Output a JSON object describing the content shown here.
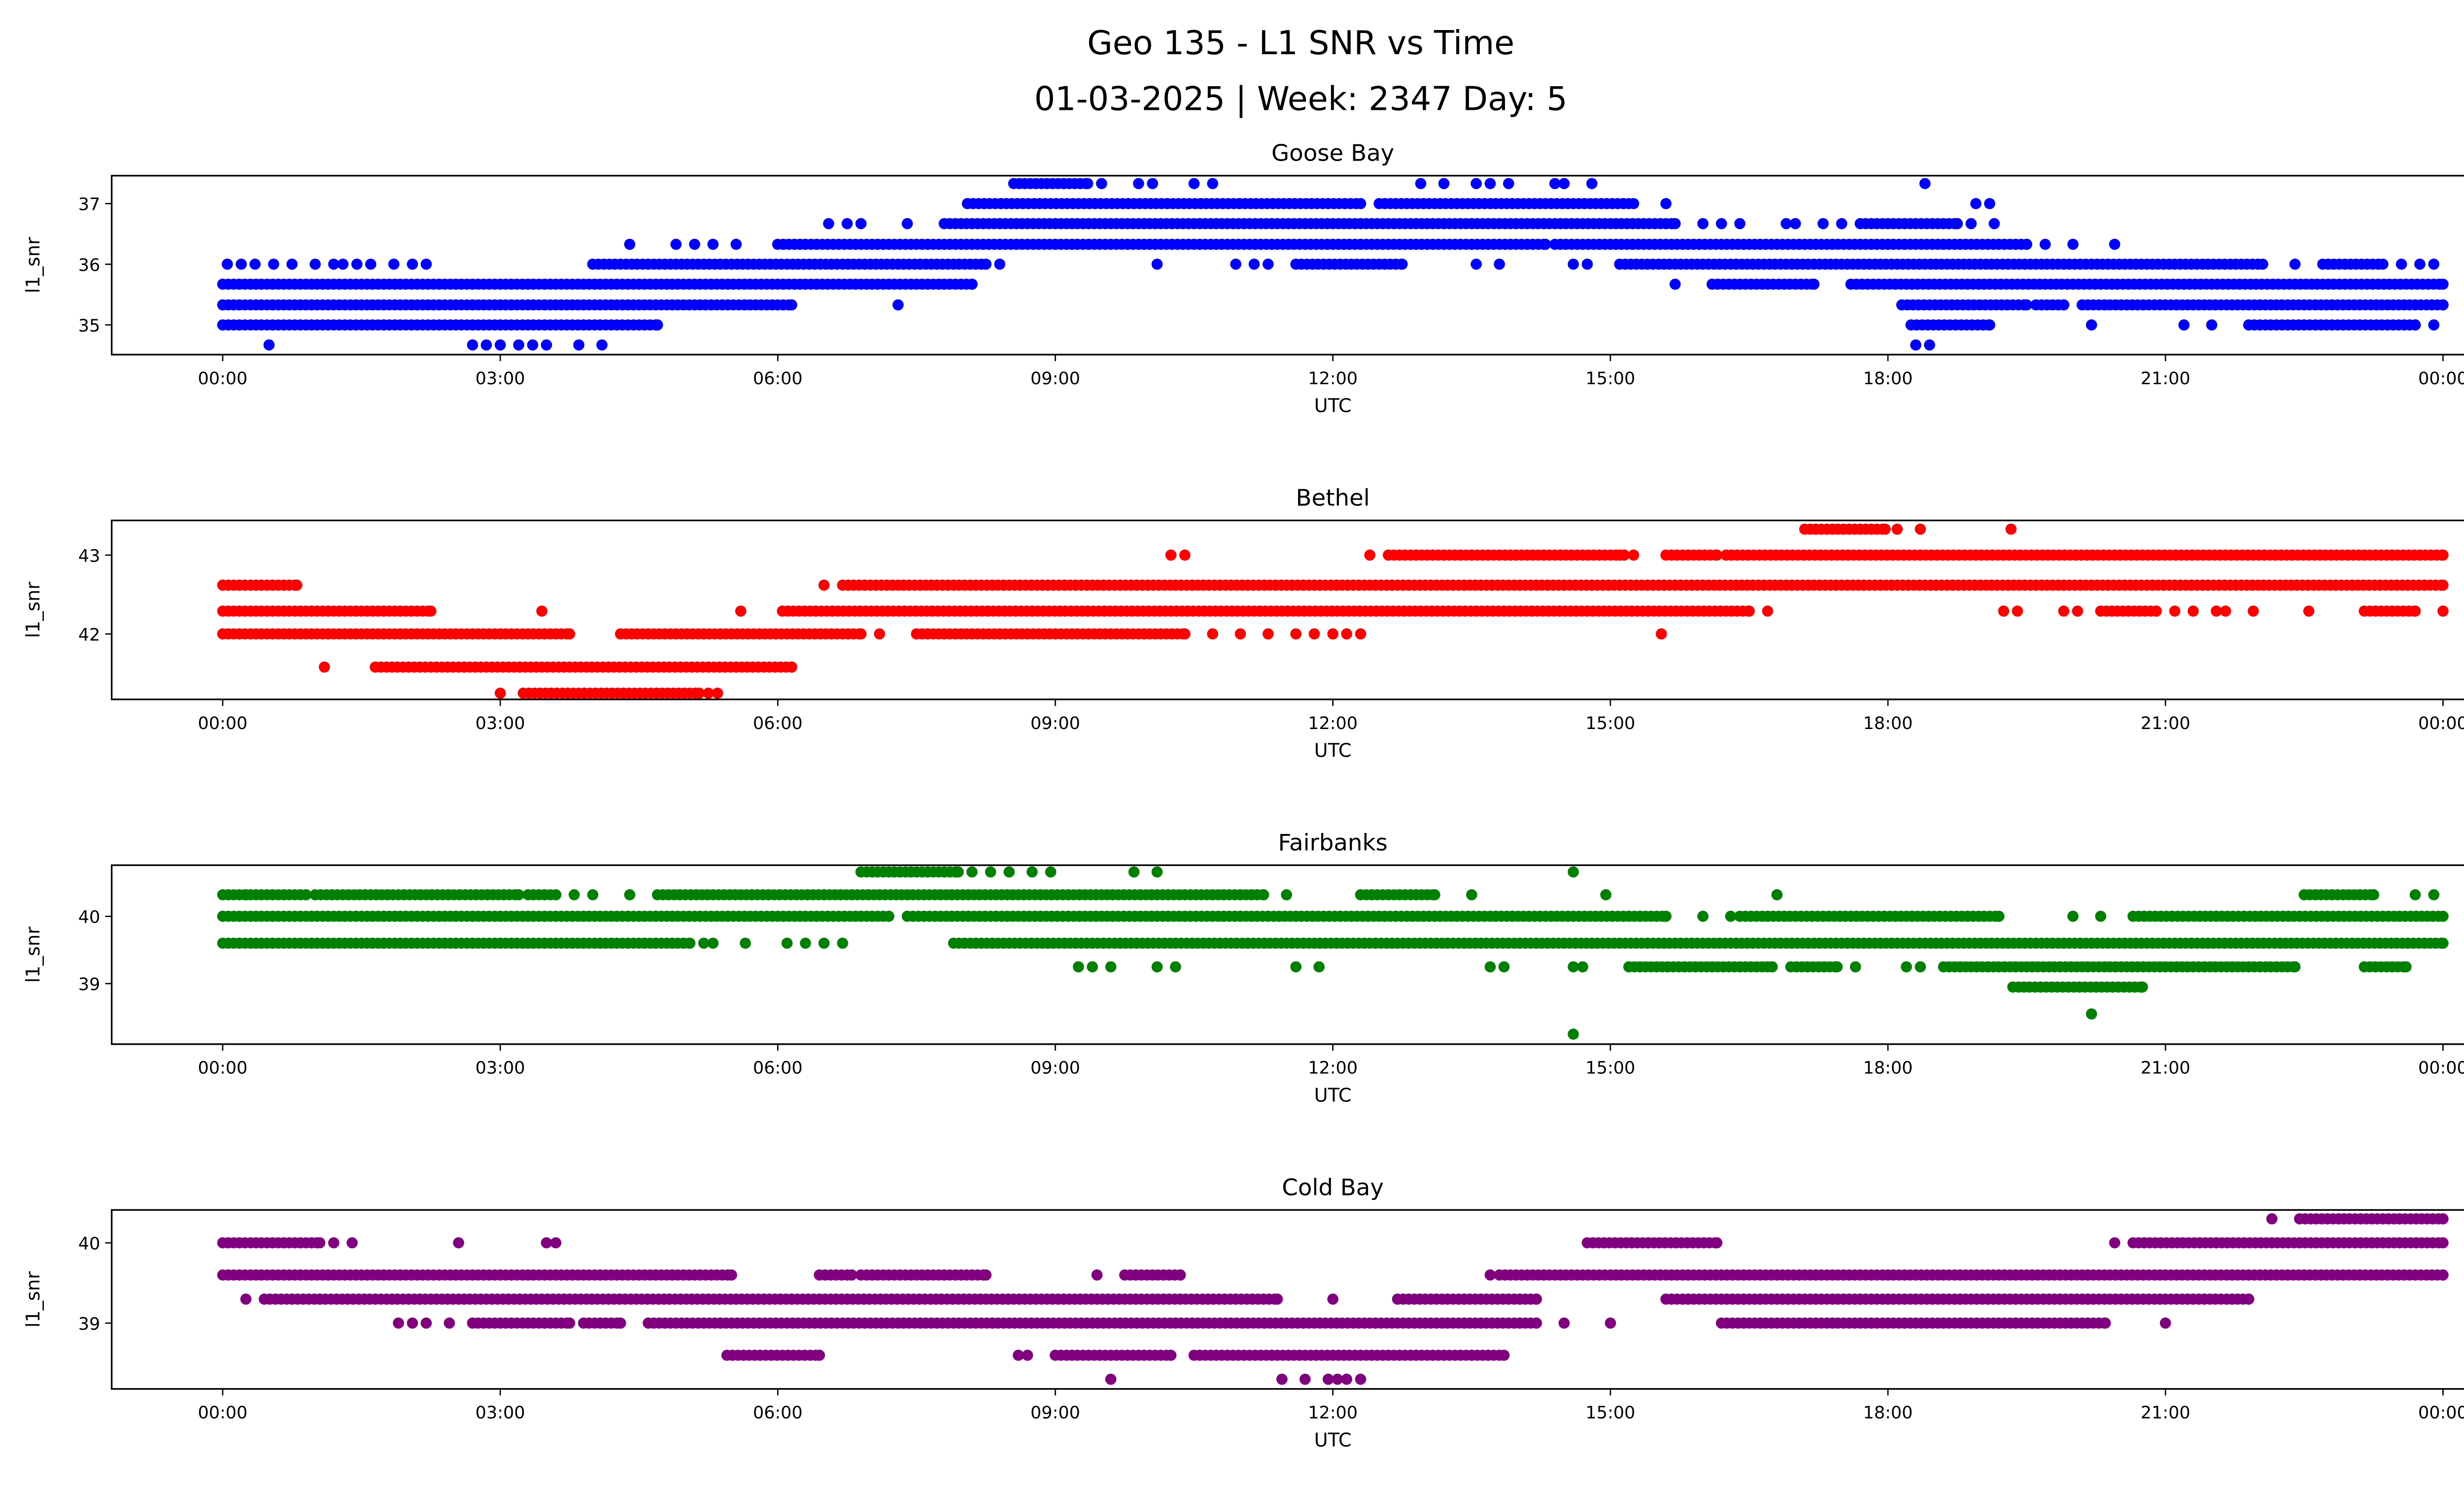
{
  "title_line1": "Geo 135 - L1 SNR vs Time",
  "title_line2": "01-03-2025 | Week: 2347 Day: 5",
  "chart_data": [
    {
      "type": "scatter",
      "title": "Goose Bay",
      "xlabel": "UTC",
      "ylabel": "l1_snr",
      "color": "#0000ff",
      "xlim": [
        -1.2,
        25.2
      ],
      "ylim": [
        34.51,
        37.46
      ],
      "xticks": [
        0,
        3,
        6,
        9,
        12,
        15,
        18,
        21,
        24
      ],
      "xtick_labels": [
        "00:00",
        "03:00",
        "06:00",
        "09:00",
        "12:00",
        "15:00",
        "18:00",
        "21:00",
        "00:00"
      ],
      "yticks": [
        35,
        36,
        37
      ],
      "ytick_labels": [
        "35",
        "36",
        "37"
      ],
      "runs": [
        [
          37.33,
          8.55,
          9.35
        ],
        [
          37,
          8.05,
          12.3
        ],
        [
          37,
          12.5,
          15.25
        ],
        [
          36.67,
          7.8,
          15.7
        ],
        [
          36.67,
          17.7,
          18.75
        ],
        [
          36.33,
          6.0,
          14.3
        ],
        [
          36.33,
          14.4,
          19.5
        ],
        [
          36,
          4.0,
          8.25
        ],
        [
          36,
          11.6,
          12.75
        ],
        [
          36,
          15.1,
          22.05
        ],
        [
          36,
          22.7,
          23.35
        ],
        [
          35.67,
          0,
          8.1
        ],
        [
          35.67,
          16.1,
          17.2
        ],
        [
          35.67,
          17.6,
          24
        ],
        [
          35.33,
          0,
          6.15
        ],
        [
          35.33,
          18.15,
          19.5
        ],
        [
          35.33,
          19.6,
          19.9
        ],
        [
          35.33,
          20.1,
          24
        ],
        [
          35,
          0,
          4.7
        ],
        [
          35,
          18.25,
          19.1
        ],
        [
          35,
          21.9,
          23.7
        ]
      ],
      "points": [
        [
          37.33,
          9.5
        ],
        [
          37.33,
          9.9
        ],
        [
          37.33,
          10.05
        ],
        [
          37.33,
          10.5
        ],
        [
          37.33,
          10.7
        ],
        [
          37.33,
          12.95
        ],
        [
          37.33,
          13.2
        ],
        [
          37.33,
          13.55
        ],
        [
          37.33,
          13.7
        ],
        [
          37.33,
          13.9
        ],
        [
          37.33,
          14.4
        ],
        [
          37.33,
          14.5
        ],
        [
          37.33,
          14.8
        ],
        [
          37.33,
          18.4
        ],
        [
          37,
          15.6
        ],
        [
          37,
          18.95
        ],
        [
          37,
          19.1
        ],
        [
          36.67,
          6.55
        ],
        [
          36.67,
          6.75
        ],
        [
          36.67,
          6.9
        ],
        [
          36.67,
          7.4
        ],
        [
          36.67,
          16.0
        ],
        [
          36.67,
          16.2
        ],
        [
          36.67,
          16.4
        ],
        [
          36.67,
          16.9
        ],
        [
          36.67,
          17.0
        ],
        [
          36.67,
          17.3
        ],
        [
          36.67,
          17.5
        ],
        [
          36.67,
          18.9
        ],
        [
          36.67,
          19.15
        ],
        [
          36.33,
          4.4
        ],
        [
          36.33,
          4.9
        ],
        [
          36.33,
          5.1
        ],
        [
          36.33,
          5.3
        ],
        [
          36.33,
          5.55
        ],
        [
          36.33,
          19.7
        ],
        [
          36.33,
          20.0
        ],
        [
          36.33,
          20.45
        ],
        [
          36,
          0.05
        ],
        [
          36,
          0.2
        ],
        [
          36,
          0.35
        ],
        [
          36,
          0.55
        ],
        [
          36,
          0.75
        ],
        [
          36,
          1.0
        ],
        [
          36,
          1.2
        ],
        [
          36,
          1.3
        ],
        [
          36,
          1.45
        ],
        [
          36,
          1.6
        ],
        [
          36,
          1.85
        ],
        [
          36,
          2.05
        ],
        [
          36,
          2.2
        ],
        [
          36,
          8.4
        ],
        [
          36,
          10.1
        ],
        [
          36,
          10.95
        ],
        [
          36,
          11.15
        ],
        [
          36,
          11.3
        ],
        [
          36,
          13.55
        ],
        [
          36,
          13.8
        ],
        [
          36,
          14.6
        ],
        [
          36,
          14.75
        ],
        [
          36,
          22.4
        ],
        [
          36,
          23.55
        ],
        [
          36,
          23.75
        ],
        [
          36,
          23.9
        ],
        [
          35.67,
          15.7
        ],
        [
          35.33,
          7.3
        ],
        [
          35,
          20.2
        ],
        [
          35,
          21.2
        ],
        [
          35,
          21.5
        ],
        [
          35,
          23.9
        ],
        [
          34.67,
          0.5
        ],
        [
          34.67,
          2.7
        ],
        [
          34.67,
          2.85
        ],
        [
          34.67,
          3.0
        ],
        [
          34.67,
          3.2
        ],
        [
          34.67,
          3.35
        ],
        [
          34.67,
          3.5
        ],
        [
          34.67,
          3.85
        ],
        [
          34.67,
          4.1
        ],
        [
          34.67,
          18.3
        ],
        [
          34.67,
          18.45
        ]
      ]
    },
    {
      "type": "scatter",
      "title": "Bethel",
      "xlabel": "UTC",
      "ylabel": "l1_snr",
      "color": "#ff0000",
      "xlim": [
        -1.2,
        25.2
      ],
      "ylim": [
        41.17,
        43.44
      ],
      "xticks": [
        0,
        3,
        6,
        9,
        12,
        15,
        18,
        21,
        24
      ],
      "xtick_labels": [
        "00:00",
        "03:00",
        "06:00",
        "09:00",
        "12:00",
        "15:00",
        "18:00",
        "21:00",
        "00:00"
      ],
      "yticks": [
        42,
        43
      ],
      "ytick_labels": [
        "42",
        "43"
      ],
      "runs": [
        [
          43.33,
          17.1,
          17.97
        ],
        [
          43,
          12.6,
          15.1
        ],
        [
          43,
          15.6,
          16.15
        ],
        [
          43,
          16.25,
          24
        ],
        [
          42.62,
          0,
          0.8
        ],
        [
          42.62,
          6.7,
          24
        ],
        [
          42.29,
          0,
          2.25
        ],
        [
          42.29,
          6.05,
          16.5
        ],
        [
          42.29,
          20.3,
          20.9
        ],
        [
          42.29,
          23.15,
          23.7
        ],
        [
          42,
          0,
          3.75
        ],
        [
          42,
          4.3,
          6.9
        ],
        [
          42,
          7.5,
          10.4
        ],
        [
          41.58,
          1.65,
          6.15
        ],
        [
          41.25,
          3.25,
          5.15
        ]
      ],
      "points": [
        [
          43.33,
          18.1
        ],
        [
          43.33,
          18.35
        ],
        [
          43.33,
          19.33
        ],
        [
          43,
          10.25
        ],
        [
          43,
          10.4
        ],
        [
          43,
          12.4
        ],
        [
          43,
          15.15
        ],
        [
          43,
          15.25
        ],
        [
          42.62,
          6.5
        ],
        [
          42.29,
          3.45
        ],
        [
          42.29,
          5.6
        ],
        [
          42.29,
          16.7
        ],
        [
          42.29,
          19.25
        ],
        [
          42.29,
          19.4
        ],
        [
          42.29,
          19.9
        ],
        [
          42.29,
          20.05
        ],
        [
          42.29,
          21.1
        ],
        [
          42.29,
          21.3
        ],
        [
          42.29,
          21.55
        ],
        [
          42.29,
          21.65
        ],
        [
          42.29,
          21.95
        ],
        [
          42.29,
          22.55
        ],
        [
          42.29,
          24
        ],
        [
          42,
          7.1
        ],
        [
          42,
          10.7
        ],
        [
          42,
          11.0
        ],
        [
          42,
          11.3
        ],
        [
          42,
          11.6
        ],
        [
          42,
          11.8
        ],
        [
          42,
          12.0
        ],
        [
          42,
          12.15
        ],
        [
          42,
          12.3
        ],
        [
          42,
          15.55
        ],
        [
          41.58,
          1.1
        ],
        [
          41.25,
          3.0
        ],
        [
          41.25,
          5.25
        ],
        [
          41.25,
          5.35
        ]
      ]
    },
    {
      "type": "scatter",
      "title": "Fairbanks",
      "xlabel": "UTC",
      "ylabel": "l1_snr",
      "color": "#008000",
      "xlim": [
        -1.2,
        25.2
      ],
      "ylim": [
        38.1,
        40.76
      ],
      "xticks": [
        0,
        3,
        6,
        9,
        12,
        15,
        18,
        21,
        24
      ],
      "xtick_labels": [
        "00:00",
        "03:00",
        "06:00",
        "09:00",
        "12:00",
        "15:00",
        "18:00",
        "21:00",
        "00:00"
      ],
      "yticks": [
        39,
        40
      ],
      "ytick_labels": [
        "39",
        "40"
      ],
      "runs": [
        [
          40.66,
          6.9,
          7.95
        ],
        [
          40.32,
          0,
          0.25
        ],
        [
          40.32,
          0.3,
          0.9
        ],
        [
          40.32,
          1.0,
          3.2
        ],
        [
          40.32,
          3.3,
          3.6
        ],
        [
          40.32,
          4.7,
          11.25
        ],
        [
          40.32,
          12.3,
          13.1
        ],
        [
          40.32,
          22.5,
          23.25
        ],
        [
          40,
          0,
          7.2
        ],
        [
          40,
          7.4,
          15.6
        ],
        [
          40,
          16.4,
          19.2
        ],
        [
          40,
          20.65,
          24
        ],
        [
          39.6,
          0,
          5.05
        ],
        [
          39.6,
          7.9,
          24
        ],
        [
          39.25,
          15.2,
          16.75
        ],
        [
          39.25,
          16.95,
          17.45
        ],
        [
          39.25,
          18.6,
          22.4
        ],
        [
          39.25,
          23.15,
          23.6
        ],
        [
          38.95,
          19.35,
          20.75
        ]
      ],
      "points": [
        [
          40.66,
          8.1
        ],
        [
          40.66,
          8.3
        ],
        [
          40.66,
          8.5
        ],
        [
          40.66,
          8.75
        ],
        [
          40.66,
          8.95
        ],
        [
          40.66,
          9.85
        ],
        [
          40.66,
          10.1
        ],
        [
          40.66,
          14.6
        ],
        [
          40.32,
          3.8
        ],
        [
          40.32,
          4.0
        ],
        [
          40.32,
          4.4
        ],
        [
          40.32,
          11.5
        ],
        [
          40.32,
          13.5
        ],
        [
          40.32,
          14.95
        ],
        [
          40.32,
          16.8
        ],
        [
          40.32,
          23.7
        ],
        [
          40.32,
          23.9
        ],
        [
          40,
          16.0
        ],
        [
          40,
          16.3
        ],
        [
          40,
          20.0
        ],
        [
          40,
          20.3
        ],
        [
          39.6,
          5.2
        ],
        [
          39.6,
          5.3
        ],
        [
          39.6,
          5.65
        ],
        [
          39.6,
          6.1
        ],
        [
          39.6,
          6.3
        ],
        [
          39.6,
          6.5
        ],
        [
          39.6,
          6.7
        ],
        [
          39.25,
          9.25
        ],
        [
          39.25,
          9.4
        ],
        [
          39.25,
          9.6
        ],
        [
          39.25,
          10.1
        ],
        [
          39.25,
          10.3
        ],
        [
          39.25,
          11.6
        ],
        [
          39.25,
          11.85
        ],
        [
          39.25,
          13.7
        ],
        [
          39.25,
          13.85
        ],
        [
          39.25,
          14.6
        ],
        [
          39.25,
          14.7
        ],
        [
          39.25,
          17.65
        ],
        [
          39.25,
          18.2
        ],
        [
          39.25,
          18.35
        ],
        [
          38.55,
          20.2
        ],
        [
          38.25,
          14.6
        ]
      ]
    },
    {
      "type": "scatter",
      "title": "Cold Bay",
      "xlabel": "UTC",
      "ylabel": "l1_snr",
      "color": "#800080",
      "xlim": [
        -1.2,
        25.2
      ],
      "ylim": [
        38.18,
        40.41
      ],
      "xticks": [
        0,
        3,
        6,
        9,
        12,
        15,
        18,
        21,
        24
      ],
      "xtick_labels": [
        "00:00",
        "03:00",
        "06:00",
        "09:00",
        "12:00",
        "15:00",
        "18:00",
        "21:00",
        "00:00"
      ],
      "yticks": [
        39,
        40
      ],
      "ytick_labels": [
        "39",
        "40"
      ],
      "runs": [
        [
          40.3,
          22.45,
          24
        ],
        [
          40,
          0,
          1.05
        ],
        [
          40,
          14.75,
          16.15
        ],
        [
          40,
          20.65,
          24
        ],
        [
          39.6,
          0,
          5.5
        ],
        [
          39.6,
          6.45,
          6.8
        ],
        [
          39.6,
          6.9,
          8.25
        ],
        [
          39.6,
          9.75,
          10.35
        ],
        [
          39.6,
          13.8,
          24
        ],
        [
          39.3,
          0.45,
          11.4
        ],
        [
          39.3,
          12.7,
          14.2
        ],
        [
          39.3,
          15.6,
          21.9
        ],
        [
          39,
          2.7,
          3.75
        ],
        [
          39,
          3.9,
          4.3
        ],
        [
          39,
          4.6,
          14.2
        ],
        [
          39,
          16.2,
          20.35
        ],
        [
          38.6,
          5.45,
          6.45
        ],
        [
          38.6,
          9.0,
          10.25
        ],
        [
          38.6,
          10.5,
          13.85
        ]
      ],
      "points": [
        [
          40.3,
          22.15
        ],
        [
          40,
          1.2
        ],
        [
          40,
          1.4
        ],
        [
          40,
          2.55
        ],
        [
          40,
          3.5
        ],
        [
          40,
          3.6
        ],
        [
          40,
          20.45
        ],
        [
          39.6,
          9.45
        ],
        [
          39.6,
          13.7
        ],
        [
          39.3,
          0.25
        ],
        [
          39.3,
          12.0
        ],
        [
          39,
          1.9
        ],
        [
          39,
          2.05
        ],
        [
          39,
          2.2
        ],
        [
          39,
          2.45
        ],
        [
          39,
          14.5
        ],
        [
          39,
          15.0
        ],
        [
          39,
          21.0
        ],
        [
          38.6,
          8.6
        ],
        [
          38.6,
          8.7
        ],
        [
          38.3,
          9.6
        ],
        [
          38.3,
          11.45
        ],
        [
          38.3,
          11.7
        ],
        [
          38.3,
          11.95
        ],
        [
          38.3,
          12.05
        ],
        [
          38.3,
          12.15
        ],
        [
          38.3,
          12.3
        ]
      ]
    }
  ]
}
